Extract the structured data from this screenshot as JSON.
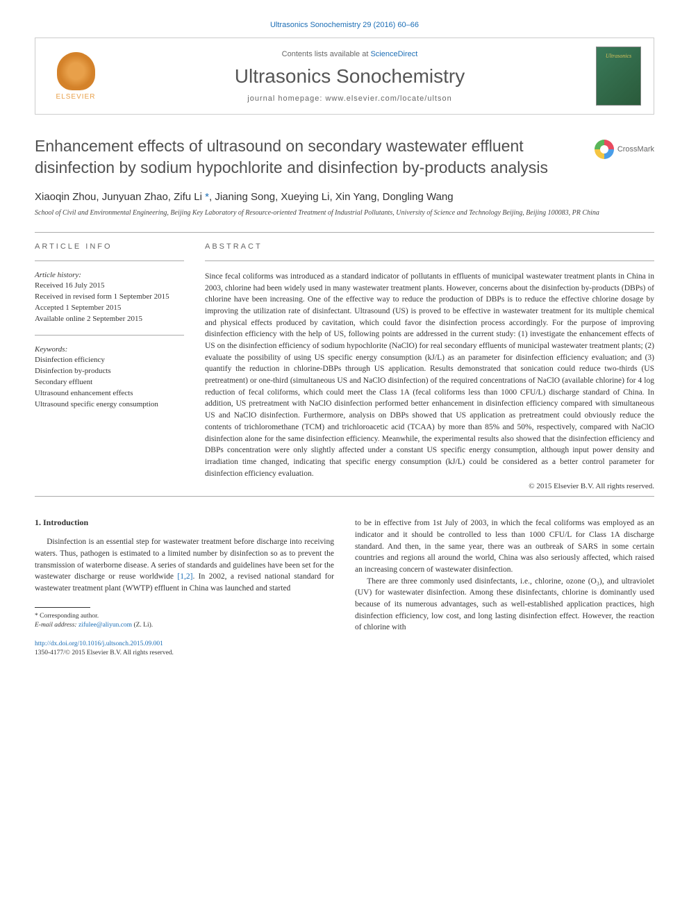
{
  "citation": "Ultrasonics Sonochemistry 29 (2016) 60–66",
  "header": {
    "contents_prefix": "Contents lists available at ",
    "contents_link": "ScienceDirect",
    "journal": "Ultrasonics Sonochemistry",
    "homepage_prefix": "journal homepage: ",
    "homepage_url": "www.elsevier.com/locate/ultson",
    "publisher": "ELSEVIER",
    "cover_text": "Ultrasonics"
  },
  "crossmark": "CrossMark",
  "title": "Enhancement effects of ultrasound on secondary wastewater effluent disinfection by sodium hypochlorite and disinfection by-products analysis",
  "authors": "Xiaoqin Zhou, Junyuan Zhao, Zifu Li *, Jianing Song, Xueying Li, Xin Yang, Dongling Wang",
  "affiliation": "School of Civil and Environmental Engineering, Beijing Key Laboratory of Resource-oriented Treatment of Industrial Pollutants, University of Science and Technology Beijing, Beijing 100083, PR China",
  "info": {
    "label": "article info",
    "history_head": "Article history:",
    "received": "Received 16 July 2015",
    "revised": "Received in revised form 1 September 2015",
    "accepted": "Accepted 1 September 2015",
    "online": "Available online 2 September 2015",
    "keywords_head": "Keywords:",
    "kw1": "Disinfection efficiency",
    "kw2": "Disinfection by-products",
    "kw3": "Secondary effluent",
    "kw4": "Ultrasound enhancement effects",
    "kw5": "Ultrasound specific energy consumption"
  },
  "abstract": {
    "label": "abstract",
    "text": "Since fecal coliforms was introduced as a standard indicator of pollutants in effluents of municipal wastewater treatment plants in China in 2003, chlorine had been widely used in many wastewater treatment plants. However, concerns about the disinfection by-products (DBPs) of chlorine have been increasing. One of the effective way to reduce the production of DBPs is to reduce the effective chlorine dosage by improving the utilization rate of disinfectant. Ultrasound (US) is proved to be effective in wastewater treatment for its multiple chemical and physical effects produced by cavitation, which could favor the disinfection process accordingly. For the purpose of improving disinfection efficiency with the help of US, following points are addressed in the current study: (1) investigate the enhancement effects of US on the disinfection efficiency of sodium hypochlorite (NaClO) for real secondary effluents of municipal wastewater treatment plants; (2) evaluate the possibility of using US specific energy consumption (kJ/L) as an parameter for disinfection efficiency evaluation; and (3) quantify the reduction in chlorine-DBPs through US application. Results demonstrated that sonication could reduce two-thirds (US pretreatment) or one-third (simultaneous US and NaClO disinfection) of the required concentrations of NaClO (available chlorine) for 4 log reduction of fecal coliforms, which could meet the Class 1A (fecal coliforms less than 1000 CFU/L) discharge standard of China. In addition, US pretreatment with NaClO disinfection performed better enhancement in disinfection efficiency compared with simultaneous US and NaClO disinfection. Furthermore, analysis on DBPs showed that US application as pretreatment could obviously reduce the contents of trichloromethane (TCM) and trichloroacetic acid (TCAA) by more than 85% and 50%, respectively, compared with NaClO disinfection alone for the same disinfection efficiency. Meanwhile, the experimental results also showed that the disinfection efficiency and DBPs concentration were only slightly affected under a constant US specific energy consumption, although input power density and irradiation time changed, indicating that specific energy consumption (kJ/L) could be considered as a better control parameter for disinfection efficiency evaluation.",
    "copyright": "© 2015 Elsevier B.V. All rights reserved."
  },
  "body": {
    "heading": "1. Introduction",
    "p1": "Disinfection is an essential step for wastewater treatment before discharge into receiving waters. Thus, pathogen is estimated to a limited number by disinfection so as to prevent the transmission of waterborne disease. A series of standards and guidelines have been set for the wastewater discharge or reuse worldwide [1,2]. In 2002, a revised national standard for wastewater treatment plant (WWTP) effluent in China was launched and started",
    "p2": "to be in effective from 1st July of 2003, in which the fecal coliforms was employed as an indicator and it should be controlled to less than 1000 CFU/L for Class 1A discharge standard. And then, in the same year, there was an outbreak of SARS in some certain countries and regions all around the world, China was also seriously affected, which raised an increasing concern of wastewater disinfection.",
    "p3": "There are three commonly used disinfectants, i.e., chlorine, ozone (O₃), and ultraviolet (UV) for wastewater disinfection. Among these disinfectants, chlorine is dominantly used because of its numerous advantages, such as well-established application practices, high disinfection efficiency, low cost, and long lasting disinfection effect. However, the reaction of chlorine with"
  },
  "footnote": {
    "corr": "* Corresponding author.",
    "email_label": "E-mail address: ",
    "email": "zifulee@aliyun.com",
    "email_suffix": " (Z. Li)."
  },
  "doi": {
    "url": "http://dx.doi.org/10.1016/j.ultsonch.2015.09.001",
    "issn": "1350-4177/© 2015 Elsevier B.V. All rights reserved."
  }
}
